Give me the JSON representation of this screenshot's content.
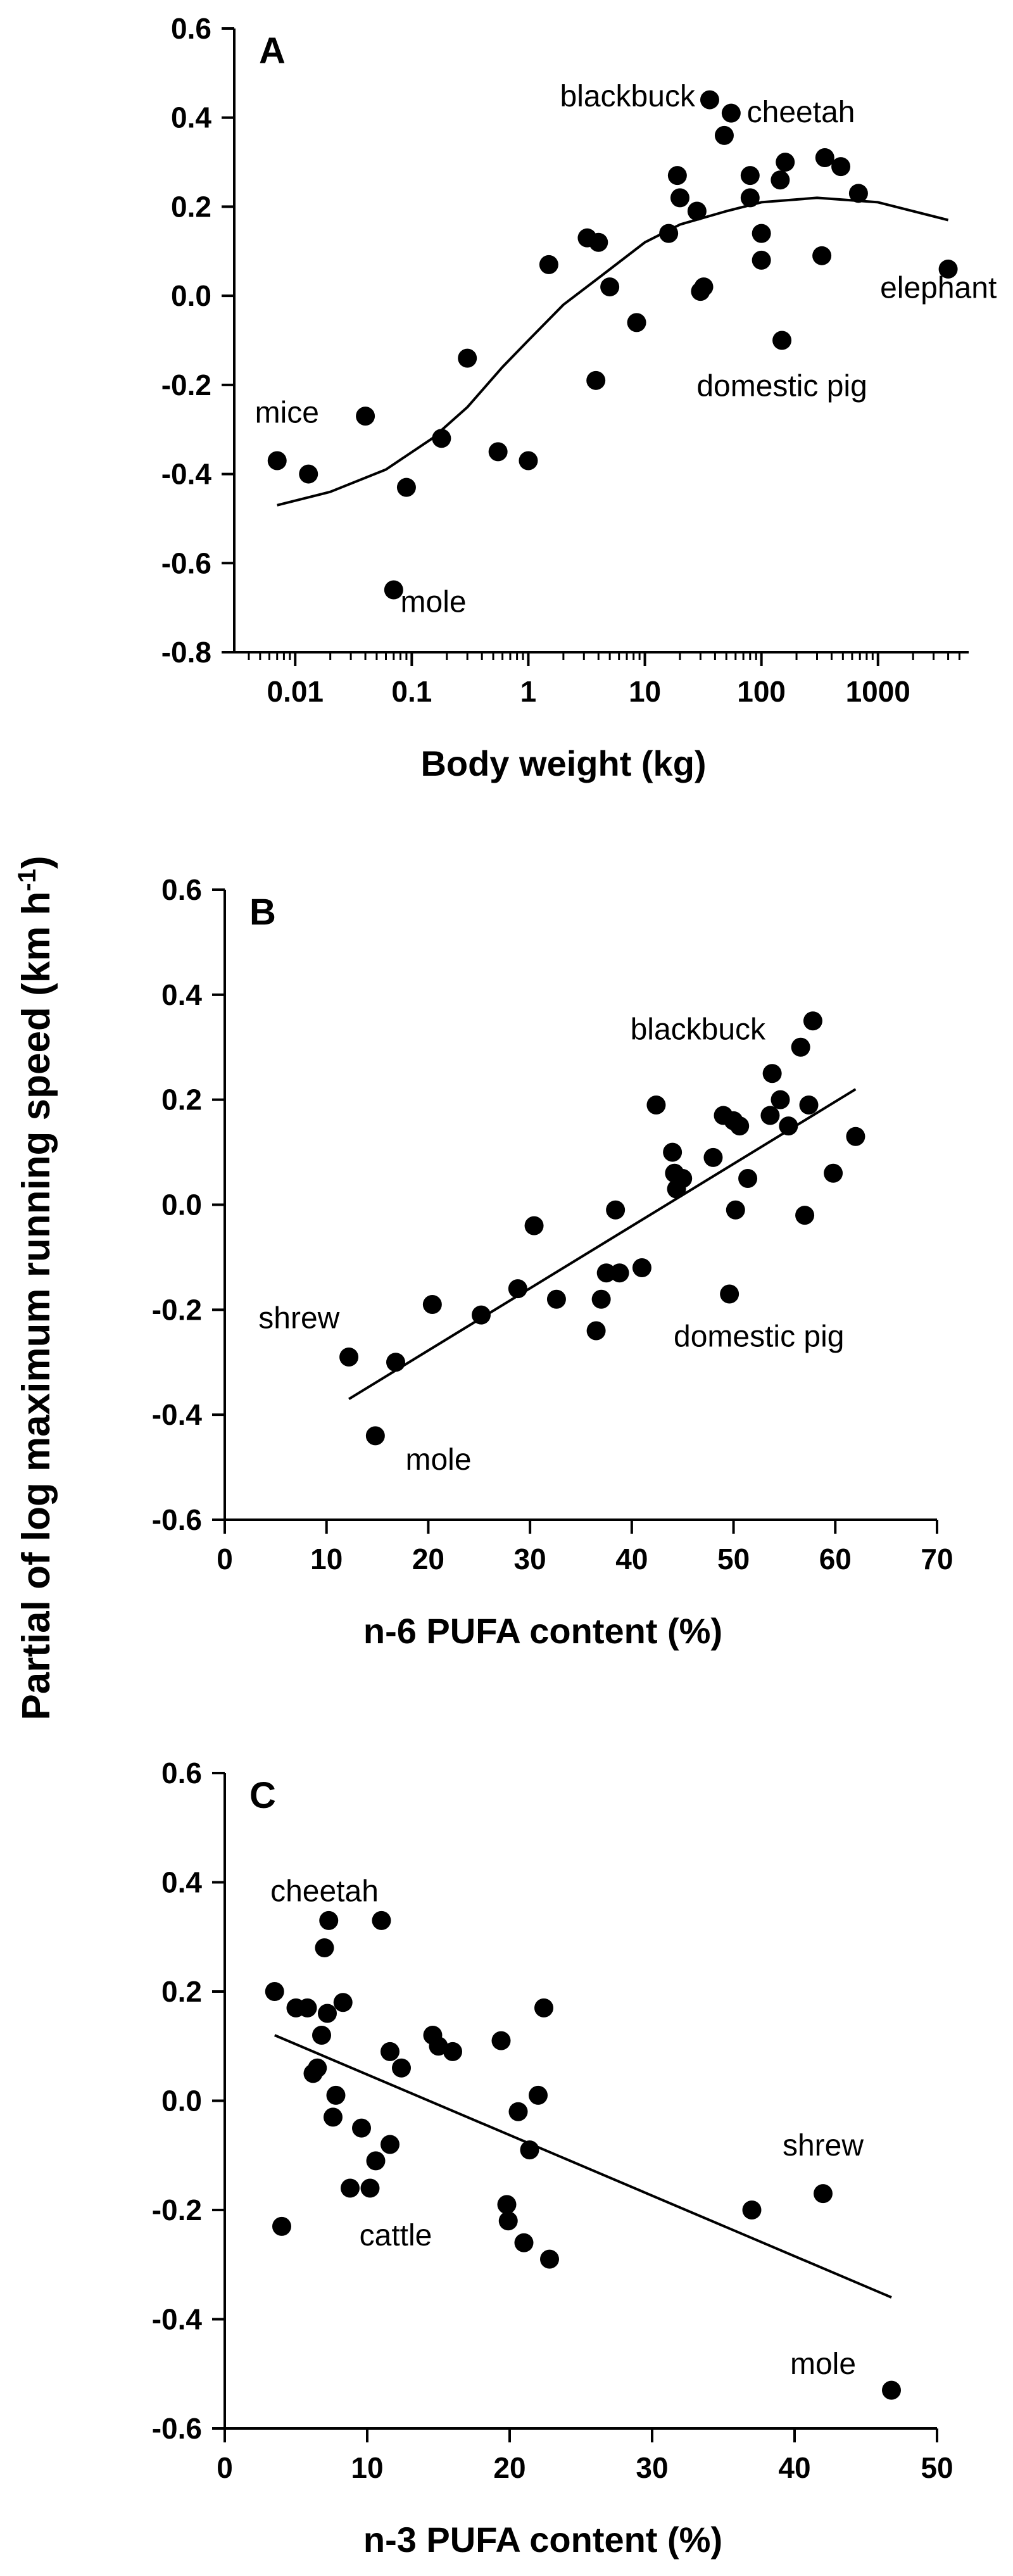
{
  "figure": {
    "ylabel_main": "Partial of log maximum running speed (km h",
    "ylabel_sup": "-1",
    "ylabel_close": ")"
  },
  "chart_data": [
    {
      "type": "scatter",
      "panel": "A",
      "xlabel": "Body weight (kg)",
      "x_scale": "log",
      "xlim": [
        0.003,
        6000
      ],
      "ylim": [
        -0.8,
        0.6
      ],
      "x_ticks": [
        0.01,
        0.1,
        1,
        10,
        100,
        1000
      ],
      "x_tick_labels": [
        "0.01",
        "0.1",
        "1",
        "10",
        "100",
        "1000"
      ],
      "y_ticks": [
        -0.8,
        -0.6,
        -0.4,
        -0.2,
        0.0,
        0.2,
        0.4,
        0.6
      ],
      "y_tick_labels": [
        "-0.8",
        "-0.6",
        "-0.4",
        "-0.2",
        "0.0",
        "0.2",
        "0.4",
        "0.6"
      ],
      "grid": false,
      "points": [
        {
          "x": 0.007,
          "y": -0.37
        },
        {
          "x": 0.013,
          "y": -0.4
        },
        {
          "x": 0.04,
          "y": -0.27
        },
        {
          "x": 0.07,
          "y": -0.66
        },
        {
          "x": 0.09,
          "y": -0.43
        },
        {
          "x": 0.18,
          "y": -0.32
        },
        {
          "x": 0.3,
          "y": -0.14
        },
        {
          "x": 0.55,
          "y": -0.35
        },
        {
          "x": 1.0,
          "y": -0.37
        },
        {
          "x": 1.5,
          "y": 0.07
        },
        {
          "x": 3.2,
          "y": 0.13
        },
        {
          "x": 4.0,
          "y": 0.12
        },
        {
          "x": 3.8,
          "y": -0.19
        },
        {
          "x": 5.0,
          "y": 0.02
        },
        {
          "x": 8.5,
          "y": -0.06
        },
        {
          "x": 16,
          "y": 0.14
        },
        {
          "x": 19,
          "y": 0.27
        },
        {
          "x": 20,
          "y": 0.22
        },
        {
          "x": 28,
          "y": 0.19
        },
        {
          "x": 30,
          "y": 0.01
        },
        {
          "x": 32,
          "y": 0.02
        },
        {
          "x": 36,
          "y": 0.44
        },
        {
          "x": 48,
          "y": 0.36
        },
        {
          "x": 55,
          "y": 0.41
        },
        {
          "x": 80,
          "y": 0.27
        },
        {
          "x": 80,
          "y": 0.22
        },
        {
          "x": 100,
          "y": 0.14
        },
        {
          "x": 100,
          "y": 0.08
        },
        {
          "x": 145,
          "y": 0.26
        },
        {
          "x": 160,
          "y": 0.3
        },
        {
          "x": 150,
          "y": -0.1
        },
        {
          "x": 350,
          "y": 0.31
        },
        {
          "x": 480,
          "y": 0.29
        },
        {
          "x": 330,
          "y": 0.09
        },
        {
          "x": 680,
          "y": 0.23
        },
        {
          "x": 4000,
          "y": 0.06
        }
      ],
      "curve": [
        {
          "x": 0.007,
          "y": -0.47
        },
        {
          "x": 0.02,
          "y": -0.44
        },
        {
          "x": 0.06,
          "y": -0.39
        },
        {
          "x": 0.15,
          "y": -0.32
        },
        {
          "x": 0.3,
          "y": -0.25
        },
        {
          "x": 0.6,
          "y": -0.16
        },
        {
          "x": 1,
          "y": -0.1
        },
        {
          "x": 2,
          "y": -0.02
        },
        {
          "x": 4,
          "y": 0.04
        },
        {
          "x": 10,
          "y": 0.12
        },
        {
          "x": 20,
          "y": 0.16
        },
        {
          "x": 50,
          "y": 0.19
        },
        {
          "x": 100,
          "y": 0.21
        },
        {
          "x": 300,
          "y": 0.22
        },
        {
          "x": 1000,
          "y": 0.21
        },
        {
          "x": 4000,
          "y": 0.17
        }
      ],
      "annotations": [
        {
          "text": "mice",
          "x": 0.0085,
          "y": -0.285,
          "anchor": "middle"
        },
        {
          "text": "mole",
          "x": 0.08,
          "y": -0.71,
          "anchor": "start"
        },
        {
          "text": "blackbuck",
          "x": 27,
          "y": 0.425,
          "anchor": "end"
        },
        {
          "text": "cheetah",
          "x": 75,
          "y": 0.39,
          "anchor": "start"
        },
        {
          "text": "elephant",
          "x": 3300,
          "y": -0.005,
          "anchor": "middle"
        },
        {
          "text": "domestic pig",
          "x": 150,
          "y": -0.225,
          "anchor": "middle"
        }
      ]
    },
    {
      "type": "scatter",
      "panel": "B",
      "xlabel": "n-6 PUFA content (%)",
      "x_scale": "linear",
      "xlim": [
        0,
        70
      ],
      "ylim": [
        -0.6,
        0.6
      ],
      "x_ticks": [
        0,
        10,
        20,
        30,
        40,
        50,
        60,
        70
      ],
      "x_tick_labels": [
        "0",
        "10",
        "20",
        "30",
        "40",
        "50",
        "60",
        "70"
      ],
      "y_ticks": [
        -0.6,
        -0.4,
        -0.2,
        0.0,
        0.2,
        0.4,
        0.6
      ],
      "y_tick_labels": [
        "-0.6",
        "-0.4",
        "-0.2",
        "0.0",
        "0.2",
        "0.4",
        "0.6"
      ],
      "grid": false,
      "points": [
        {
          "x": 12.2,
          "y": -0.29
        },
        {
          "x": 14.8,
          "y": -0.44
        },
        {
          "x": 16.8,
          "y": -0.3
        },
        {
          "x": 20.4,
          "y": -0.19
        },
        {
          "x": 25.2,
          "y": -0.21
        },
        {
          "x": 28.8,
          "y": -0.16
        },
        {
          "x": 30.4,
          "y": -0.04
        },
        {
          "x": 32.6,
          "y": -0.18
        },
        {
          "x": 36.5,
          "y": -0.24
        },
        {
          "x": 37.0,
          "y": -0.18
        },
        {
          "x": 37.5,
          "y": -0.13
        },
        {
          "x": 38.4,
          "y": -0.01
        },
        {
          "x": 38.8,
          "y": -0.13
        },
        {
          "x": 41.0,
          "y": -0.12
        },
        {
          "x": 42.4,
          "y": 0.19
        },
        {
          "x": 44.0,
          "y": 0.1
        },
        {
          "x": 44.2,
          "y": 0.06
        },
        {
          "x": 44.4,
          "y": 0.03
        },
        {
          "x": 45.0,
          "y": 0.05
        },
        {
          "x": 48.0,
          "y": 0.09
        },
        {
          "x": 49.0,
          "y": 0.17
        },
        {
          "x": 50.0,
          "y": 0.16
        },
        {
          "x": 50.2,
          "y": -0.01
        },
        {
          "x": 49.6,
          "y": -0.17
        },
        {
          "x": 50.6,
          "y": 0.15
        },
        {
          "x": 51.4,
          "y": 0.05
        },
        {
          "x": 53.6,
          "y": 0.17
        },
        {
          "x": 53.8,
          "y": 0.25
        },
        {
          "x": 54.6,
          "y": 0.2
        },
        {
          "x": 55.4,
          "y": 0.15
        },
        {
          "x": 56.6,
          "y": 0.3
        },
        {
          "x": 57.0,
          "y": -0.02
        },
        {
          "x": 57.4,
          "y": 0.19
        },
        {
          "x": 57.8,
          "y": 0.35
        },
        {
          "x": 59.8,
          "y": 0.06
        },
        {
          "x": 62.0,
          "y": 0.13
        }
      ],
      "fit_line": [
        {
          "x": 12.2,
          "y": -0.37
        },
        {
          "x": 62.0,
          "y": 0.22
        }
      ],
      "annotations": [
        {
          "text": "blackbuck",
          "x": 46.5,
          "y": 0.315,
          "anchor": "middle"
        },
        {
          "text": "shrew",
          "x": 7.3,
          "y": -0.235,
          "anchor": "middle"
        },
        {
          "text": "mole",
          "x": 21.0,
          "y": -0.505,
          "anchor": "middle"
        },
        {
          "text": "domestic pig",
          "x": 52.5,
          "y": -0.27,
          "anchor": "middle"
        }
      ]
    },
    {
      "type": "scatter",
      "panel": "C",
      "xlabel": "n-3 PUFA content (%)",
      "x_scale": "linear",
      "xlim": [
        0,
        50
      ],
      "ylim": [
        -0.6,
        0.6
      ],
      "x_ticks": [
        0,
        10,
        20,
        30,
        40,
        50
      ],
      "x_tick_labels": [
        "0",
        "10",
        "20",
        "30",
        "40",
        "50"
      ],
      "y_ticks": [
        -0.6,
        -0.4,
        -0.2,
        0.0,
        0.2,
        0.4,
        0.6
      ],
      "y_tick_labels": [
        "-0.6",
        "-0.4",
        "-0.2",
        "0.0",
        "0.2",
        "0.4",
        "0.6"
      ],
      "grid": false,
      "points": [
        {
          "x": 3.5,
          "y": 0.2
        },
        {
          "x": 4.0,
          "y": -0.23
        },
        {
          "x": 5.0,
          "y": 0.17
        },
        {
          "x": 5.8,
          "y": 0.17
        },
        {
          "x": 6.2,
          "y": 0.05
        },
        {
          "x": 6.5,
          "y": 0.06
        },
        {
          "x": 6.8,
          "y": 0.12
        },
        {
          "x": 7.0,
          "y": 0.28
        },
        {
          "x": 7.2,
          "y": 0.16
        },
        {
          "x": 7.3,
          "y": 0.33
        },
        {
          "x": 7.6,
          "y": -0.03
        },
        {
          "x": 7.8,
          "y": 0.01
        },
        {
          "x": 8.3,
          "y": 0.18
        },
        {
          "x": 8.8,
          "y": -0.16
        },
        {
          "x": 9.6,
          "y": -0.05
        },
        {
          "x": 10.2,
          "y": -0.16
        },
        {
          "x": 10.6,
          "y": -0.11
        },
        {
          "x": 11.0,
          "y": 0.33
        },
        {
          "x": 11.6,
          "y": -0.08
        },
        {
          "x": 11.6,
          "y": 0.09
        },
        {
          "x": 12.4,
          "y": 0.06
        },
        {
          "x": 14.6,
          "y": 0.12
        },
        {
          "x": 15.0,
          "y": 0.1
        },
        {
          "x": 16.0,
          "y": 0.09
        },
        {
          "x": 19.4,
          "y": 0.11
        },
        {
          "x": 19.8,
          "y": -0.19
        },
        {
          "x": 19.9,
          "y": -0.22
        },
        {
          "x": 20.6,
          "y": -0.02
        },
        {
          "x": 21.0,
          "y": -0.26
        },
        {
          "x": 21.4,
          "y": -0.09
        },
        {
          "x": 22.0,
          "y": 0.01
        },
        {
          "x": 22.4,
          "y": 0.17
        },
        {
          "x": 22.8,
          "y": -0.29
        },
        {
          "x": 37.0,
          "y": -0.2
        },
        {
          "x": 42.0,
          "y": -0.17
        },
        {
          "x": 46.8,
          "y": -0.53
        }
      ],
      "fit_line": [
        {
          "x": 3.5,
          "y": 0.12
        },
        {
          "x": 46.8,
          "y": -0.36
        }
      ],
      "annotations": [
        {
          "text": "cheetah",
          "x": 7.0,
          "y": 0.365,
          "anchor": "middle"
        },
        {
          "text": "cattle",
          "x": 12.0,
          "y": -0.265,
          "anchor": "middle"
        },
        {
          "text": "shrew",
          "x": 42.0,
          "y": -0.1,
          "anchor": "middle"
        },
        {
          "text": "mole",
          "x": 42.0,
          "y": -0.5,
          "anchor": "middle"
        }
      ]
    }
  ]
}
